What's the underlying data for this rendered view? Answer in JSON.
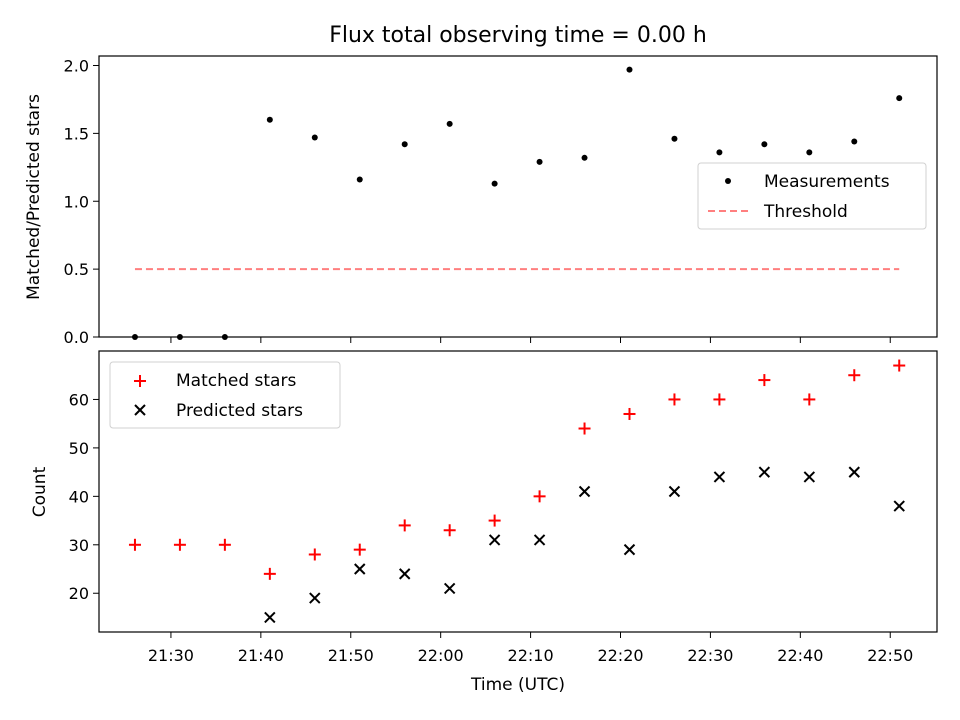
{
  "chart_data": [
    {
      "type": "scatter",
      "title": "Flux total observing time = 0.00 h",
      "xlabel": "",
      "ylabel": "Matched/Predicted stars",
      "ylim": [
        0,
        2.07
      ],
      "yticks": [
        "0.0",
        "0.5",
        "1.0",
        "1.5",
        "2.0"
      ],
      "yticks_values": [
        0,
        0.5,
        1.0,
        1.5,
        2.0
      ],
      "legend_position": "center-right",
      "series": [
        {
          "name": "Measurements",
          "marker": "dot",
          "color": "#000000",
          "x": [
            "21:26",
            "21:31",
            "21:36",
            "21:41",
            "21:46",
            "21:51",
            "21:56",
            "22:01",
            "22:06",
            "22:11",
            "22:16",
            "22:21",
            "22:26",
            "22:31",
            "22:36",
            "22:41",
            "22:46",
            "22:51"
          ],
          "y": [
            0.0,
            0.0,
            0.0,
            1.6,
            1.47,
            1.16,
            1.42,
            1.57,
            1.13,
            1.29,
            1.32,
            1.97,
            1.46,
            1.36,
            1.42,
            1.36,
            1.44,
            1.76
          ]
        },
        {
          "name": "Threshold",
          "line": "dashed",
          "color": "#ff7f7f",
          "x": [
            "21:26",
            "22:51"
          ],
          "y": [
            0.5,
            0.5
          ]
        }
      ]
    },
    {
      "type": "scatter",
      "xlabel": "Time (UTC)",
      "ylabel": "Count",
      "ylim": [
        12,
        70
      ],
      "yticks": [
        "20",
        "30",
        "40",
        "50",
        "60"
      ],
      "yticks_values": [
        20,
        30,
        40,
        50,
        60
      ],
      "xticks": [
        "21:30",
        "21:40",
        "21:50",
        "22:00",
        "22:10",
        "22:20",
        "22:30",
        "22:40",
        "22:50"
      ],
      "legend_position": "top-left",
      "series": [
        {
          "name": "Matched stars",
          "marker": "plus",
          "color": "#ff0000",
          "x": [
            "21:26",
            "21:31",
            "21:36",
            "21:41",
            "21:46",
            "21:51",
            "21:56",
            "22:01",
            "22:06",
            "22:11",
            "22:16",
            "22:21",
            "22:26",
            "22:31",
            "22:36",
            "22:41",
            "22:46",
            "22:51"
          ],
          "y": [
            30,
            30,
            30,
            24,
            28,
            29,
            34,
            33,
            35,
            40,
            54,
            57,
            60,
            60,
            64,
            60,
            65,
            67
          ]
        },
        {
          "name": "Predicted stars",
          "marker": "x",
          "color": "#000000",
          "x": [
            "21:41",
            "21:46",
            "21:51",
            "21:56",
            "22:01",
            "22:06",
            "22:11",
            "22:16",
            "22:21",
            "22:26",
            "22:31",
            "22:36",
            "22:41",
            "22:46",
            "22:51"
          ],
          "y": [
            15,
            19,
            25,
            24,
            21,
            31,
            31,
            41,
            29,
            41,
            44,
            45,
            44,
            45,
            38
          ]
        }
      ]
    }
  ]
}
